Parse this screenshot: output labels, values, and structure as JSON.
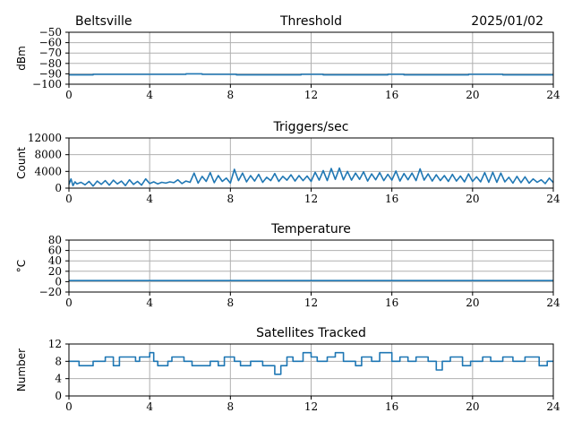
{
  "header": {
    "station": "Beltsville",
    "date": "2025/01/02"
  },
  "line_color": "#1f77b4",
  "chart_data": [
    {
      "type": "line",
      "title": "Threshold",
      "ylabel": "dBm",
      "xlim": [
        0,
        24
      ],
      "ylim": [
        -100,
        -50
      ],
      "xticks": [
        0,
        4,
        8,
        12,
        16,
        20,
        24
      ],
      "yticks": [
        -100,
        -90,
        -80,
        -70,
        -60,
        -50
      ],
      "ytick_labels": [
        "−100",
        "−90",
        "−80",
        "−70",
        "−60",
        "−50"
      ],
      "grid": true,
      "series": [
        {
          "x": [
            0,
            1.2,
            1.2,
            5.8,
            5.8,
            6.6,
            6.6,
            8.3,
            8.3,
            11.5,
            11.5,
            12.6,
            12.6,
            15.8,
            15.8,
            16.6,
            16.6,
            19.8,
            19.8,
            21.5,
            21.5,
            24
          ],
          "y": [
            -91,
            -91,
            -90.5,
            -90.5,
            -90,
            -90,
            -90.5,
            -90.5,
            -91,
            -91,
            -90.5,
            -90.5,
            -91,
            -91,
            -90.5,
            -90.5,
            -91,
            -91,
            -90.5,
            -90.5,
            -91,
            -91
          ]
        }
      ]
    },
    {
      "type": "line",
      "title": "Triggers/sec",
      "ylabel": "Count",
      "xlim": [
        0,
        24
      ],
      "ylim": [
        0,
        12000
      ],
      "xticks": [
        0,
        4,
        8,
        12,
        16,
        20,
        24
      ],
      "yticks": [
        0,
        4000,
        8000,
        12000
      ],
      "ytick_labels": [
        "0",
        "4000",
        "8000",
        "12000"
      ],
      "grid": true,
      "series": [
        {
          "x": [
            0,
            0.1,
            0.2,
            0.3,
            0.4,
            0.6,
            0.8,
            1.0,
            1.2,
            1.4,
            1.6,
            1.8,
            2.0,
            2.2,
            2.4,
            2.6,
            2.8,
            3.0,
            3.2,
            3.4,
            3.6,
            3.8,
            4.0,
            4.2,
            4.4,
            4.6,
            4.8,
            5.0,
            5.2,
            5.4,
            5.6,
            5.8,
            6.0,
            6.2,
            6.4,
            6.6,
            6.8,
            7.0,
            7.2,
            7.4,
            7.6,
            7.8,
            8.0,
            8.2,
            8.4,
            8.6,
            8.8,
            9.0,
            9.2,
            9.4,
            9.6,
            9.8,
            10.0,
            10.2,
            10.4,
            10.6,
            10.8,
            11.0,
            11.2,
            11.4,
            11.6,
            11.8,
            12.0,
            12.2,
            12.4,
            12.6,
            12.8,
            13.0,
            13.2,
            13.4,
            13.6,
            13.8,
            14.0,
            14.2,
            14.4,
            14.6,
            14.8,
            15.0,
            15.2,
            15.4,
            15.6,
            15.8,
            16.0,
            16.2,
            16.4,
            16.6,
            16.8,
            17.0,
            17.2,
            17.4,
            17.6,
            17.8,
            18.0,
            18.2,
            18.4,
            18.6,
            18.8,
            19.0,
            19.2,
            19.4,
            19.6,
            19.8,
            20.0,
            20.2,
            20.4,
            20.6,
            20.8,
            21.0,
            21.2,
            21.4,
            21.6,
            21.8,
            22.0,
            22.2,
            22.4,
            22.6,
            22.8,
            23.0,
            23.2,
            23.4,
            23.6,
            23.8,
            24.0
          ],
          "y": [
            900,
            2200,
            600,
            1500,
            1000,
            1400,
            800,
            1600,
            500,
            1700,
            900,
            1800,
            700,
            1900,
            1000,
            1700,
            600,
            2000,
            900,
            1600,
            700,
            2200,
            1100,
            1500,
            1000,
            1400,
            1200,
            1500,
            1300,
            2000,
            1100,
            1700,
            1400,
            3600,
            1200,
            2800,
            1600,
            3700,
            1300,
            3000,
            1600,
            2400,
            1200,
            4500,
            1800,
            3600,
            1500,
            3000,
            1700,
            3300,
            1400,
            2600,
            1800,
            3500,
            1600,
            2800,
            1900,
            3200,
            1700,
            3000,
            1800,
            2900,
            1600,
            3800,
            1900,
            4200,
            1800,
            4700,
            2100,
            4800,
            2000,
            4000,
            1900,
            3600,
            2100,
            3900,
            1700,
            3400,
            2000,
            3700,
            1800,
            3300,
            1900,
            4100,
            1700,
            3500,
            2000,
            3600,
            1800,
            4600,
            1900,
            3400,
            1700,
            3200,
            1800,
            3000,
            1600,
            3300,
            1700,
            2900,
            1500,
            3400,
            1600,
            2700,
            1500,
            3700,
            1400,
            3800,
            1400,
            3600,
            1500,
            2600,
            1200,
            2800,
            1300,
            2700,
            1200,
            2200,
            1400,
            2000,
            1100,
            2400,
            1300
          ]
        }
      ]
    },
    {
      "type": "line",
      "title": "Temperature",
      "ylabel": "°C",
      "xlim": [
        0,
        24
      ],
      "ylim": [
        -20,
        80
      ],
      "xticks": [
        0,
        4,
        8,
        12,
        16,
        20,
        24
      ],
      "yticks": [
        -20,
        0,
        20,
        40,
        60,
        80
      ],
      "ytick_labels": [
        "−20",
        "0",
        "20",
        "40",
        "60",
        "80"
      ],
      "grid": true,
      "series": [
        {
          "x": [
            0,
            24
          ],
          "y": [
            2,
            2
          ]
        }
      ]
    },
    {
      "type": "line",
      "title": "Satellites Tracked",
      "ylabel": "Number",
      "xlim": [
        0,
        24
      ],
      "ylim": [
        0,
        12
      ],
      "xticks": [
        0,
        4,
        8,
        12,
        16,
        20,
        24
      ],
      "yticks": [
        0,
        4,
        8,
        12
      ],
      "ytick_labels": [
        "0",
        "4",
        "8",
        "12"
      ],
      "grid": true,
      "series": [
        {
          "x": [
            0,
            0.5,
            0.5,
            1.2,
            1.2,
            1.8,
            1.8,
            2.2,
            2.2,
            2.5,
            2.5,
            3.3,
            3.3,
            3.5,
            3.5,
            4.0,
            4.0,
            4.2,
            4.2,
            4.4,
            4.4,
            4.9,
            4.9,
            5.1,
            5.1,
            5.7,
            5.7,
            6.1,
            6.1,
            7.0,
            7.0,
            7.4,
            7.4,
            7.7,
            7.7,
            8.2,
            8.2,
            8.5,
            8.5,
            9.0,
            9.0,
            9.6,
            9.6,
            10.2,
            10.2,
            10.5,
            10.5,
            10.8,
            10.8,
            11.1,
            11.1,
            11.6,
            11.6,
            12.0,
            12.0,
            12.3,
            12.3,
            12.8,
            12.8,
            13.2,
            13.2,
            13.6,
            13.6,
            14.2,
            14.2,
            14.5,
            14.5,
            15.0,
            15.0,
            15.4,
            15.4,
            16.0,
            16.0,
            16.4,
            16.4,
            16.8,
            16.8,
            17.2,
            17.2,
            17.8,
            17.8,
            18.2,
            18.2,
            18.5,
            18.5,
            18.9,
            18.9,
            19.5,
            19.5,
            19.9,
            19.9,
            20.5,
            20.5,
            20.9,
            20.9,
            21.5,
            21.5,
            22.0,
            22.0,
            22.6,
            22.6,
            23.3,
            23.3,
            23.7,
            23.7,
            24.0
          ],
          "y": [
            8,
            8,
            7,
            7,
            8,
            8,
            9,
            9,
            7,
            7,
            9,
            9,
            8,
            8,
            9,
            9,
            10,
            10,
            8,
            8,
            7,
            7,
            8,
            8,
            9,
            9,
            8,
            8,
            7,
            7,
            8,
            8,
            7,
            7,
            9,
            9,
            8,
            8,
            7,
            7,
            8,
            8,
            7,
            7,
            5,
            5,
            7,
            7,
            9,
            9,
            8,
            8,
            10,
            10,
            9,
            9,
            8,
            8,
            9,
            9,
            10,
            10,
            8,
            8,
            7,
            7,
            9,
            9,
            8,
            8,
            10,
            10,
            8,
            8,
            9,
            9,
            8,
            8,
            9,
            9,
            8,
            8,
            6,
            6,
            8,
            8,
            9,
            9,
            7,
            7,
            8,
            8,
            9,
            9,
            8,
            8,
            9,
            9,
            8,
            8,
            9,
            9,
            7,
            7,
            8,
            8
          ]
        }
      ]
    }
  ]
}
